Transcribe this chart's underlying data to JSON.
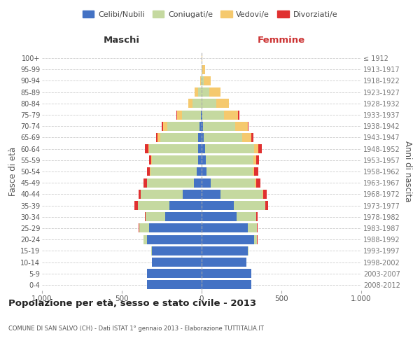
{
  "age_groups": [
    "0-4",
    "5-9",
    "10-14",
    "15-19",
    "20-24",
    "25-29",
    "30-34",
    "35-39",
    "40-44",
    "45-49",
    "50-54",
    "55-59",
    "60-64",
    "65-69",
    "70-74",
    "75-79",
    "80-84",
    "85-89",
    "90-94",
    "95-99",
    "100+"
  ],
  "birth_years": [
    "2008-2012",
    "2003-2007",
    "1998-2002",
    "1993-1997",
    "1988-1992",
    "1983-1987",
    "1978-1982",
    "1973-1977",
    "1968-1972",
    "1963-1967",
    "1958-1962",
    "1953-1957",
    "1948-1952",
    "1943-1947",
    "1938-1942",
    "1933-1937",
    "1928-1932",
    "1923-1927",
    "1918-1922",
    "1913-1917",
    "≤ 1912"
  ],
  "male": {
    "single": [
      340,
      340,
      310,
      310,
      340,
      330,
      230,
      200,
      120,
      50,
      30,
      20,
      20,
      20,
      15,
      5,
      0,
      0,
      0,
      0,
      0
    ],
    "married": [
      0,
      0,
      0,
      5,
      25,
      60,
      120,
      200,
      260,
      290,
      290,
      290,
      310,
      240,
      200,
      120,
      55,
      20,
      5,
      0,
      0
    ],
    "widowed": [
      0,
      0,
      0,
      0,
      0,
      0,
      0,
      0,
      0,
      0,
      5,
      5,
      5,
      15,
      25,
      30,
      30,
      25,
      5,
      0,
      0
    ],
    "divorced": [
      0,
      0,
      0,
      0,
      0,
      5,
      5,
      20,
      15,
      25,
      15,
      15,
      20,
      10,
      10,
      5,
      0,
      0,
      0,
      0,
      0
    ]
  },
  "female": {
    "single": [
      310,
      310,
      280,
      290,
      330,
      290,
      220,
      200,
      120,
      55,
      30,
      25,
      20,
      15,
      10,
      5,
      0,
      0,
      0,
      0,
      0
    ],
    "married": [
      0,
      0,
      0,
      5,
      15,
      55,
      120,
      200,
      260,
      280,
      290,
      300,
      310,
      240,
      200,
      135,
      90,
      50,
      15,
      5,
      0
    ],
    "widowed": [
      0,
      0,
      0,
      0,
      0,
      0,
      0,
      0,
      5,
      5,
      10,
      15,
      25,
      55,
      80,
      90,
      80,
      70,
      40,
      15,
      5
    ],
    "divorced": [
      0,
      0,
      0,
      0,
      5,
      5,
      10,
      15,
      25,
      30,
      25,
      20,
      20,
      15,
      5,
      5,
      0,
      0,
      0,
      0,
      0
    ]
  },
  "colors": {
    "single": "#4472c4",
    "married": "#c5d9a0",
    "widowed": "#f5c96e",
    "divorced": "#e03030"
  },
  "legend_labels": [
    "Celibi/Nubili",
    "Coniugati/e",
    "Vedovi/e",
    "Divorziati/e"
  ],
  "title": "Popolazione per età, sesso e stato civile - 2013",
  "subtitle": "COMUNE DI SAN SALVO (CH) - Dati ISTAT 1° gennaio 2013 - Elaborazione TUTTITALIA.IT",
  "xlabel_left": "Maschi",
  "xlabel_right": "Femmine",
  "ylabel_left": "Fasce di età",
  "ylabel_right": "Anni di nascita",
  "xlim": 1000,
  "background_color": "#ffffff",
  "grid_color": "#cccccc",
  "bar_height": 0.8
}
